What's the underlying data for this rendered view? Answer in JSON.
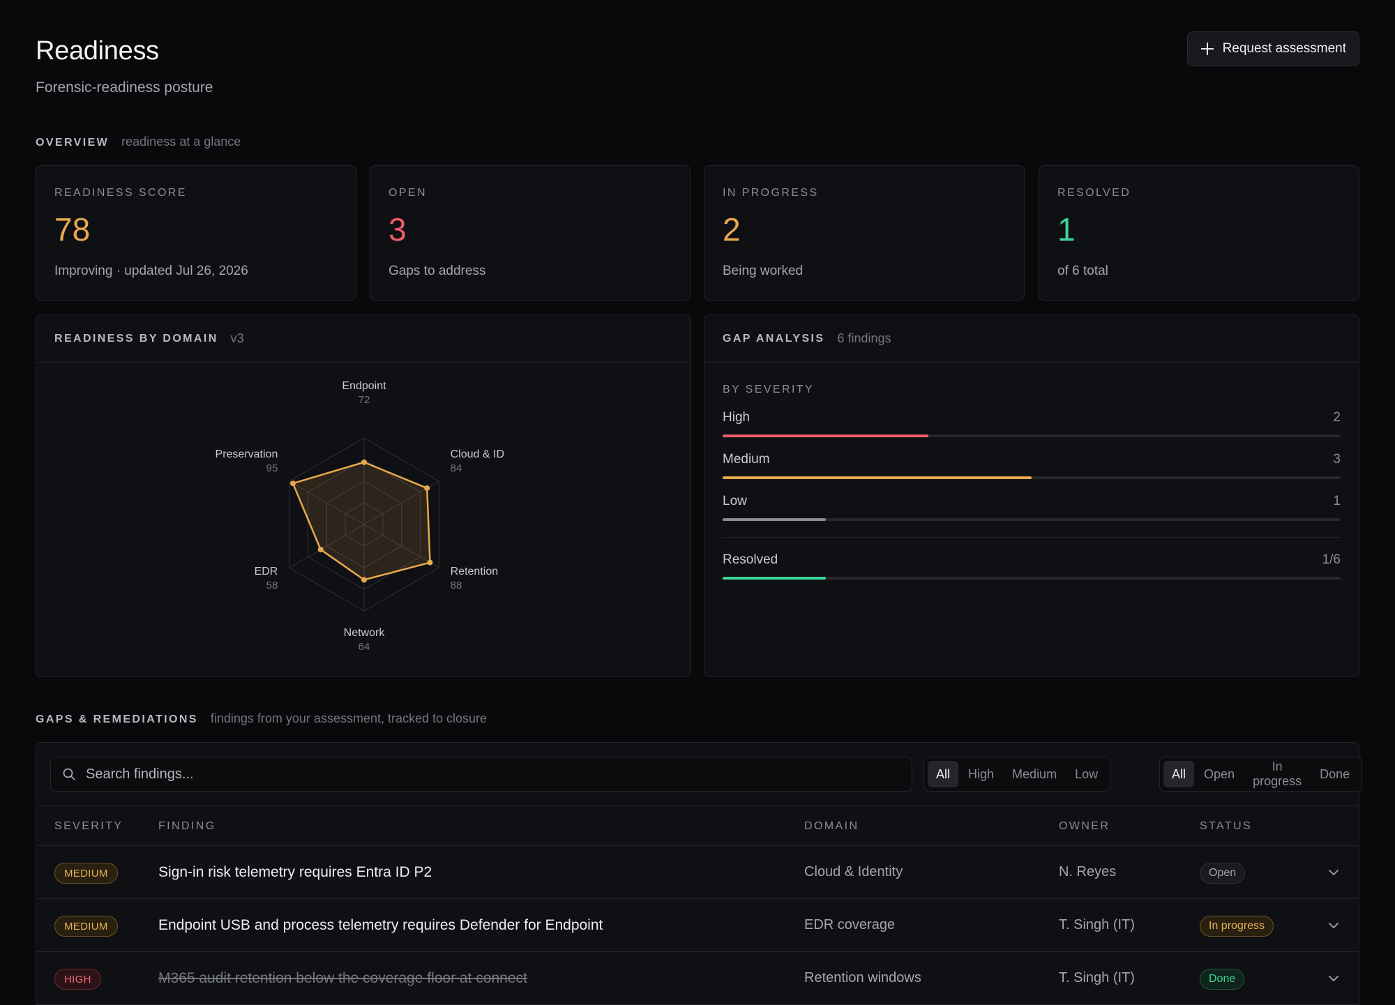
{
  "header": {
    "title": "Readiness",
    "subtitle": "Forensic-readiness posture",
    "request_button": "Request assessment"
  },
  "overview": {
    "label": "OVERVIEW",
    "sub": "readiness at a glance",
    "cards": [
      {
        "label": "READINESS SCORE",
        "value": "78",
        "note": "Improving · updated Jul 26, 2026",
        "color": "#e8a94e"
      },
      {
        "label": "OPEN",
        "value": "3",
        "note": "Gaps to address",
        "color": "#ee5d6c"
      },
      {
        "label": "IN PROGRESS",
        "value": "2",
        "note": "Being worked",
        "color": "#e8a94e"
      },
      {
        "label": "RESOLVED",
        "value": "1",
        "note": "of 6 total",
        "color": "#3dd69a"
      }
    ]
  },
  "radar": {
    "label": "READINESS BY DOMAIN",
    "sub": "v3",
    "color": "#e8a94e"
  },
  "chart_data": {
    "type": "radar",
    "categories": [
      "Endpoint",
      "Cloud & ID",
      "Retention",
      "Network",
      "EDR",
      "Preservation"
    ],
    "values": [
      72,
      84,
      88,
      64,
      58,
      95
    ],
    "value_labels": [
      "72",
      "84",
      "88",
      "64",
      "58",
      "95"
    ],
    "range": [
      0,
      100
    ],
    "grid": true
  },
  "gap": {
    "label": "GAP ANALYSIS",
    "sub": "6 findings",
    "by_severity": "BY SEVERITY",
    "bars": [
      {
        "label": "High",
        "count": "2",
        "fraction": 0.333,
        "color": "#ee5d6c"
      },
      {
        "label": "Medium",
        "count": "3",
        "fraction": 0.5,
        "color": "#e8a94e"
      },
      {
        "label": "Low",
        "count": "1",
        "fraction": 0.1667,
        "color": "#8b8d94"
      }
    ],
    "resolved": {
      "label": "Resolved",
      "count": "1/6",
      "fraction": 0.1667,
      "color": "#3dd69a"
    }
  },
  "gaps": {
    "label": "GAPS & REMEDIATIONS",
    "sub": "findings from your assessment, tracked to closure",
    "search_placeholder": "Search findings...",
    "severity_filters": [
      "All",
      "High",
      "Medium",
      "Low"
    ],
    "status_filters": [
      "All",
      "Open",
      "In progress",
      "Done"
    ],
    "columns": {
      "severity": "SEVERITY",
      "finding": "FINDING",
      "domain": "DOMAIN",
      "owner": "OWNER",
      "status": "STATUS"
    },
    "rows": [
      {
        "severity": "MEDIUM",
        "finding": "Sign-in risk telemetry requires Entra ID P2",
        "domain": "Cloud & Identity",
        "owner": "N. Reyes",
        "status": "Open"
      },
      {
        "severity": "MEDIUM",
        "finding": "Endpoint USB and process telemetry requires Defender for Endpoint",
        "domain": "EDR coverage",
        "owner": "T. Singh (IT)",
        "status": "In progress"
      },
      {
        "severity": "HIGH",
        "finding": "M365 audit retention below the coverage floor at connect",
        "domain": "Retention windows",
        "owner": "T. Singh (IT)",
        "status": "Done"
      }
    ]
  }
}
